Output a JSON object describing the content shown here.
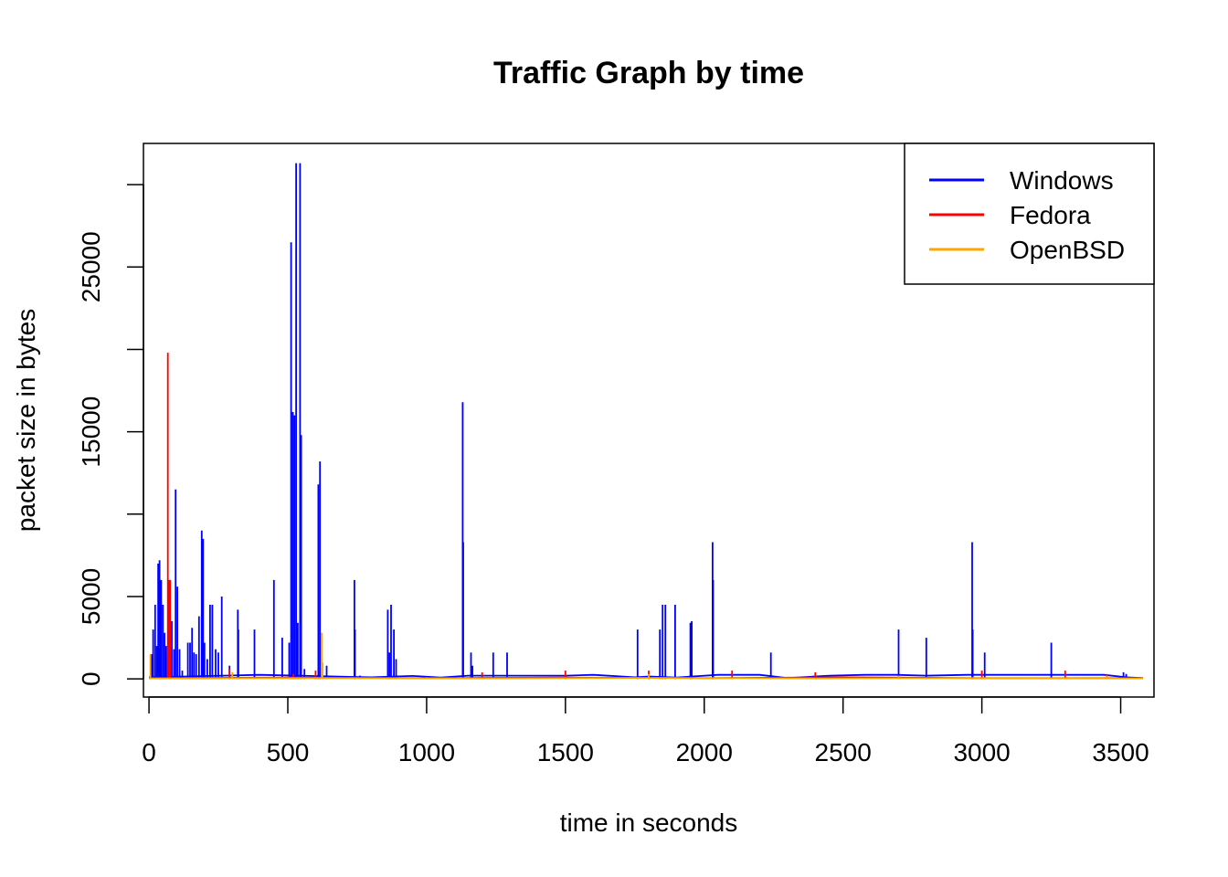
{
  "chart_data": {
    "type": "line",
    "title": "Traffic Graph by time",
    "xlabel": "time in seconds",
    "ylabel": "packet size in bytes",
    "xlim": [
      -20,
      3620
    ],
    "ylim": [
      -1100,
      32500
    ],
    "x_ticks": [
      0,
      500,
      1000,
      1500,
      2000,
      2500,
      3000,
      3500
    ],
    "y_ticks": [
      0,
      5000,
      10000,
      15000,
      20000,
      25000,
      30000
    ],
    "y_tick_labels": [
      "0",
      "5000",
      "",
      "15000",
      "",
      "25000",
      ""
    ],
    "legend": {
      "placement": "top-right"
    },
    "series": [
      {
        "name": "Windows",
        "color": "#0000ff",
        "spikes": [
          [
            10,
            1500
          ],
          [
            15,
            3000
          ],
          [
            22,
            4500
          ],
          [
            28,
            2000
          ],
          [
            33,
            7000
          ],
          [
            38,
            7200
          ],
          [
            44,
            6000
          ],
          [
            50,
            4500
          ],
          [
            56,
            2800
          ],
          [
            62,
            2000
          ],
          [
            68,
            1500
          ],
          [
            75,
            1200
          ],
          [
            82,
            3500
          ],
          [
            90,
            1800
          ],
          [
            96,
            11500
          ],
          [
            102,
            5600
          ],
          [
            110,
            1800
          ],
          [
            120,
            500
          ],
          [
            140,
            2200
          ],
          [
            148,
            2200
          ],
          [
            155,
            3100
          ],
          [
            162,
            1600
          ],
          [
            170,
            1500
          ],
          [
            180,
            3800
          ],
          [
            190,
            9000
          ],
          [
            195,
            8500
          ],
          [
            200,
            2200
          ],
          [
            210,
            1200
          ],
          [
            220,
            4500
          ],
          [
            228,
            4500
          ],
          [
            240,
            1800
          ],
          [
            250,
            1600
          ],
          [
            262,
            5000
          ],
          [
            290,
            800
          ],
          [
            320,
            4200
          ],
          [
            322,
            3000
          ],
          [
            380,
            3000
          ],
          [
            450,
            6000
          ],
          [
            480,
            2500
          ],
          [
            505,
            2200
          ],
          [
            512,
            26500
          ],
          [
            518,
            16200
          ],
          [
            524,
            16000
          ],
          [
            530,
            31300
          ],
          [
            536,
            3400
          ],
          [
            544,
            31300
          ],
          [
            548,
            14800
          ],
          [
            560,
            600
          ],
          [
            610,
            11800
          ],
          [
            616,
            13200
          ],
          [
            640,
            800
          ],
          [
            740,
            6000
          ],
          [
            742,
            3000
          ],
          [
            760,
            200
          ],
          [
            860,
            4200
          ],
          [
            866,
            1600
          ],
          [
            872,
            4500
          ],
          [
            882,
            3000
          ],
          [
            890,
            1200
          ],
          [
            1130,
            16800
          ],
          [
            1132,
            8300
          ],
          [
            1160,
            1600
          ],
          [
            1165,
            800
          ],
          [
            1240,
            1600
          ],
          [
            1290,
            1600
          ],
          [
            1760,
            3000
          ],
          [
            1840,
            3000
          ],
          [
            1850,
            4500
          ],
          [
            1860,
            4500
          ],
          [
            1895,
            4500
          ],
          [
            1950,
            3400
          ],
          [
            1955,
            3500
          ],
          [
            2030,
            8300
          ],
          [
            2032,
            6000
          ],
          [
            2240,
            1600
          ],
          [
            2700,
            3000
          ],
          [
            2800,
            2500
          ],
          [
            2965,
            8300
          ],
          [
            2967,
            3000
          ],
          [
            3010,
            1600
          ],
          [
            3250,
            2200
          ],
          [
            3510,
            400
          ],
          [
            3520,
            300
          ]
        ],
        "baseline": [
          [
            0,
            100
          ],
          [
            400,
            250
          ],
          [
            800,
            100
          ],
          [
            950,
            180
          ],
          [
            1050,
            80
          ],
          [
            1150,
            200
          ],
          [
            1350,
            200
          ],
          [
            1500,
            200
          ],
          [
            1600,
            250
          ],
          [
            1750,
            100
          ],
          [
            1800,
            150
          ],
          [
            1900,
            80
          ],
          [
            2050,
            250
          ],
          [
            2080,
            250
          ],
          [
            2200,
            250
          ],
          [
            2300,
            50
          ],
          [
            2450,
            200
          ],
          [
            2580,
            250
          ],
          [
            2690,
            250
          ],
          [
            2800,
            200
          ],
          [
            2950,
            250
          ],
          [
            3040,
            250
          ],
          [
            3180,
            250
          ],
          [
            3290,
            250
          ],
          [
            3440,
            250
          ],
          [
            3520,
            100
          ],
          [
            3580,
            50
          ]
        ]
      },
      {
        "name": "Fedora",
        "color": "#ff0000",
        "spikes": [
          [
            68,
            19800
          ],
          [
            72,
            6000
          ],
          [
            76,
            6000
          ],
          [
            290,
            600
          ],
          [
            520,
            300
          ],
          [
            600,
            500
          ],
          [
            1200,
            400
          ],
          [
            1500,
            500
          ],
          [
            1800,
            500
          ],
          [
            2100,
            500
          ],
          [
            2400,
            400
          ],
          [
            3000,
            500
          ],
          [
            3300,
            500
          ],
          [
            3450,
            300
          ]
        ],
        "baseline": [
          [
            0,
            50
          ],
          [
            500,
            80
          ],
          [
            1000,
            50
          ],
          [
            1500,
            80
          ],
          [
            2000,
            50
          ],
          [
            2500,
            100
          ],
          [
            3000,
            50
          ],
          [
            3580,
            50
          ]
        ]
      },
      {
        "name": "OpenBSD",
        "color": "#ffa500",
        "spikes": [
          [
            5,
            1500
          ],
          [
            300,
            400
          ],
          [
            622,
            2800
          ],
          [
            625,
            1000
          ],
          [
            1000,
            100
          ],
          [
            1800,
            300
          ],
          [
            2700,
            200
          ],
          [
            3450,
            200
          ]
        ],
        "baseline": [
          [
            0,
            30
          ],
          [
            600,
            50
          ],
          [
            1200,
            30
          ],
          [
            1800,
            60
          ],
          [
            2400,
            30
          ],
          [
            3000,
            50
          ],
          [
            3580,
            30
          ]
        ]
      }
    ]
  }
}
